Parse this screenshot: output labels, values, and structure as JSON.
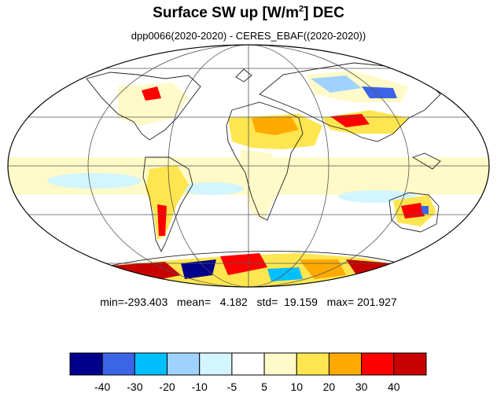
{
  "title": {
    "text": "Surface SW up [W/m",
    "superscript": "2",
    "text_after": "]  DEC"
  },
  "subtitle": "dpp0066(2020-2020) - CERES_EBAF((2020-2020))",
  "stats": {
    "line": "min=-293.403   mean=   4.182   std=  19.159   max= 201.927",
    "min": -293.403,
    "mean": 4.182,
    "std": 19.159,
    "max": 201.927
  },
  "colorbar": {
    "colors": [
      "#00008c",
      "#3c64e6",
      "#00bfff",
      "#a0d2ff",
      "#d2f5ff",
      "#ffffff",
      "#fffac8",
      "#ffe650",
      "#ffaa00",
      "#ff0000",
      "#c80000"
    ],
    "labels": [
      "-40",
      "-30",
      "-20",
      "-10",
      "-5",
      "5",
      "10",
      "20",
      "30",
      "40"
    ]
  },
  "map": {
    "projection": "Mollweide",
    "ocean_color": "#ffffff",
    "graticule": true
  }
}
